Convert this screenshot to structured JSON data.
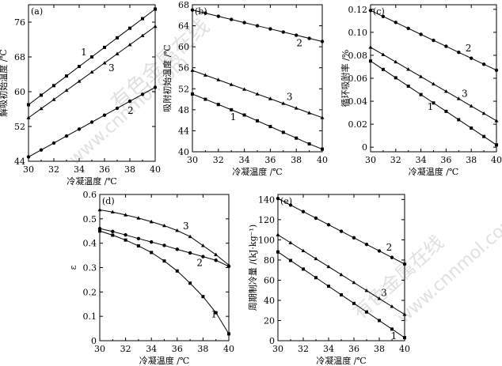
{
  "watermark": {
    "main": "有色金属在线",
    "url": "www.cnnmol.com"
  },
  "chart_data": [
    {
      "id": "a",
      "type": "line",
      "panel_label": "(a)",
      "xlabel": "冷凝温度 /℃",
      "ylabel": "解吸初始温度 /℃",
      "xlim": [
        30,
        40
      ],
      "ylim": [
        44,
        80
      ],
      "xticks": [
        30,
        32,
        34,
        36,
        38,
        40
      ],
      "yticks": [
        44,
        52,
        60,
        68,
        76
      ],
      "grid": false,
      "x": [
        30,
        31,
        32,
        33,
        34,
        35,
        36,
        37,
        38,
        39,
        40
      ],
      "series": [
        {
          "name": "1",
          "marker": "square",
          "values": [
            57,
            59.2,
            61.4,
            63.6,
            65.8,
            68,
            70.2,
            72.4,
            74.6,
            76.8,
            79
          ]
        },
        {
          "name": "3",
          "marker": "triangle",
          "values": [
            54,
            56.1,
            58.2,
            60.3,
            62.4,
            64.5,
            66.6,
            68.7,
            70.8,
            72.9,
            75
          ]
        },
        {
          "name": "2",
          "marker": "circle",
          "values": [
            45,
            46.6,
            48.2,
            49.8,
            51.4,
            53,
            54.6,
            56.2,
            57.8,
            59.4,
            61
          ]
        }
      ]
    },
    {
      "id": "b",
      "type": "line",
      "panel_label": "(b)",
      "xlabel": "冷凝温度 /℃",
      "ylabel": "吸附初始温度 /℃",
      "xlim": [
        30,
        40
      ],
      "ylim": [
        40,
        68
      ],
      "xticks": [
        30,
        32,
        34,
        36,
        38,
        40
      ],
      "yticks": [
        40,
        44,
        48,
        52,
        56,
        60,
        64,
        68
      ],
      "grid": false,
      "x": [
        30,
        31,
        32,
        33,
        34,
        35,
        36,
        37,
        38,
        39,
        40
      ],
      "series": [
        {
          "name": "2",
          "marker": "circle",
          "values": [
            67,
            66.4,
            65.8,
            65.2,
            64.6,
            64,
            63.4,
            62.8,
            62.2,
            61.6,
            61
          ]
        },
        {
          "name": "3",
          "marker": "triangle",
          "values": [
            55.5,
            54.6,
            53.7,
            52.8,
            51.9,
            51,
            50.1,
            49.2,
            48.3,
            47.4,
            46.5
          ]
        },
        {
          "name": "1",
          "marker": "square",
          "values": [
            51,
            50,
            49,
            48,
            47,
            45.9,
            44.8,
            43.7,
            42.6,
            41.5,
            40.5
          ]
        }
      ]
    },
    {
      "id": "c",
      "type": "line",
      "panel_label": "(c)",
      "xlabel": "冷凝温度 /℃",
      "ylabel": "循环吸附率 /%",
      "xlim": [
        30,
        40
      ],
      "ylim": [
        -0.004,
        0.124
      ],
      "xticks": [
        30,
        32,
        34,
        36,
        38,
        40
      ],
      "ytick_labels": [
        "0",
        "0.02",
        "0.04",
        "0.06",
        "0.08",
        "0.10",
        "0.12"
      ],
      "yticks": [
        0,
        0.02,
        0.04,
        0.06,
        0.08,
        0.1,
        0.12
      ],
      "grid": false,
      "x": [
        30,
        31,
        32,
        33,
        34,
        35,
        36,
        37,
        38,
        39,
        40
      ],
      "series": [
        {
          "name": "2",
          "marker": "circle",
          "values": [
            0.119,
            0.1138,
            0.1086,
            0.1034,
            0.0982,
            0.093,
            0.0878,
            0.0826,
            0.0774,
            0.0722,
            0.067
          ]
        },
        {
          "name": "3",
          "marker": "triangle",
          "values": [
            0.087,
            0.0806,
            0.0742,
            0.0678,
            0.0614,
            0.055,
            0.0486,
            0.0422,
            0.0358,
            0.0294,
            0.023
          ]
        },
        {
          "name": "1",
          "marker": "square",
          "values": [
            0.075,
            0.0677,
            0.0604,
            0.0531,
            0.0458,
            0.0385,
            0.0312,
            0.0239,
            0.0166,
            0.0093,
            0.002
          ]
        }
      ]
    },
    {
      "id": "d",
      "type": "line",
      "panel_label": "(d)",
      "xlabel": "冷凝温度 /℃",
      "ylabel": "ε",
      "xlim": [
        30,
        40
      ],
      "ylim": [
        0,
        0.6
      ],
      "xticks": [
        30,
        32,
        34,
        36,
        38,
        40
      ],
      "ytick_labels": [
        "0",
        "0.1",
        "0.2",
        "0.3",
        "0.4",
        "0.5",
        "0.6"
      ],
      "yticks": [
        0,
        0.1,
        0.2,
        0.3,
        0.4,
        0.5,
        0.6
      ],
      "grid": false,
      "x": [
        30,
        31,
        32,
        33,
        34,
        35,
        36,
        37,
        38,
        39,
        40
      ],
      "series": [
        {
          "name": "3",
          "marker": "triangle",
          "values": [
            0.537,
            0.528,
            0.516,
            0.503,
            0.488,
            0.472,
            0.452,
            0.427,
            0.39,
            0.353,
            0.31
          ]
        },
        {
          "name": "2",
          "marker": "circle",
          "values": [
            0.46,
            0.448,
            0.434,
            0.419,
            0.405,
            0.391,
            0.375,
            0.36,
            0.345,
            0.33,
            0.305
          ]
        },
        {
          "name": "1",
          "marker": "square",
          "values": [
            0.45,
            0.433,
            0.413,
            0.389,
            0.362,
            0.327,
            0.286,
            0.236,
            0.181,
            0.115,
            0.028
          ]
        }
      ]
    },
    {
      "id": "e",
      "type": "line",
      "panel_label": "(e)",
      "xlabel": "冷凝温度 /℃",
      "ylabel": "周期制冷量 /(kJ·kg⁻¹)",
      "xlim": [
        30,
        40
      ],
      "ylim": [
        0,
        145
      ],
      "xticks": [
        30,
        32,
        34,
        36,
        38,
        40
      ],
      "yticks": [
        0,
        20,
        40,
        60,
        80,
        100,
        120,
        140
      ],
      "grid": false,
      "x": [
        30,
        31,
        32,
        33,
        34,
        35,
        36,
        37,
        38,
        39,
        40
      ],
      "series": [
        {
          "name": "2",
          "marker": "circle",
          "values": [
            141,
            134.5,
            128,
            121.5,
            115,
            108.5,
            102,
            95.5,
            89,
            82.5,
            76
          ]
        },
        {
          "name": "3",
          "marker": "triangle",
          "values": [
            105,
            97.1,
            89.2,
            81.3,
            73.4,
            65.5,
            57.6,
            49.7,
            41.8,
            33.9,
            26
          ]
        },
        {
          "name": "1",
          "marker": "square",
          "values": [
            88,
            79.5,
            71,
            62.5,
            54,
            45.5,
            37,
            28.5,
            20,
            11.5,
            3
          ]
        }
      ]
    }
  ]
}
